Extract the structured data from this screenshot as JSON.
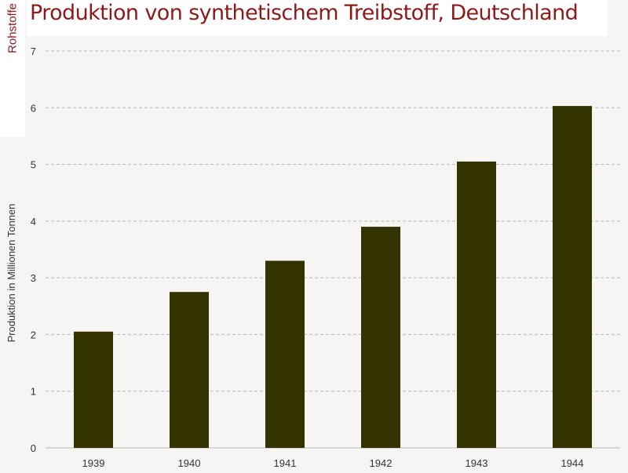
{
  "header": {
    "title": "Produktion von synthetischem Treibstoff, Deutschland",
    "side_tab": "Rohstoffe"
  },
  "colors": {
    "bar": "#333300",
    "title": "#8b1a1a",
    "background": "#f7f4f4",
    "grid": "#b8b8b8"
  },
  "chart_data": {
    "type": "bar",
    "title": "Produktion von synthetischem Treibstoff, Deutschland",
    "xlabel": "",
    "ylabel": "Produktion in Millionen Tonnen",
    "categories": [
      "1939",
      "1940",
      "1941",
      "1942",
      "1943",
      "1944"
    ],
    "values": [
      2.05,
      2.75,
      3.3,
      3.9,
      5.05,
      6.03
    ],
    "ylim": [
      0,
      7
    ],
    "yticks": [
      "0",
      "1",
      "2",
      "3",
      "4",
      "5",
      "6",
      "7"
    ],
    "grid": "horizontal dashed",
    "legend": "none"
  }
}
